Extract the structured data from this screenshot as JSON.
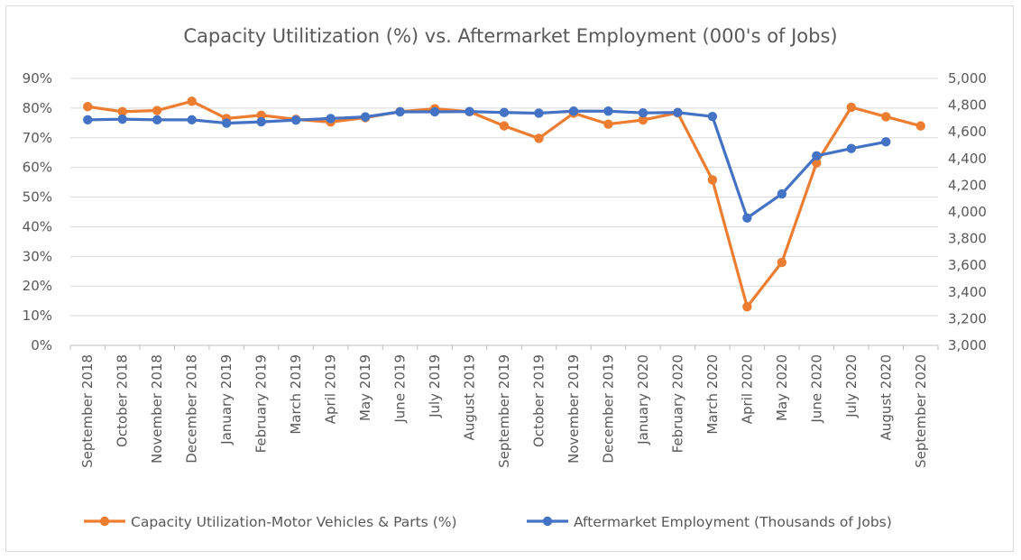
{
  "chart_data": {
    "type": "line",
    "title": "Capacity Utilitization (%) vs. Aftermarket Employment (000's of Jobs)",
    "categories": [
      "September 2018",
      "October 2018",
      "November 2018",
      "December 2018",
      "January 2019",
      "February 2019",
      "March 2019",
      "April 2019",
      "May 2019",
      "June 2019",
      "July 2019",
      "August 2019",
      "September 2019",
      "October 2019",
      "November 2019",
      "December 2019",
      "January 2020",
      "February 2020",
      "March 2020",
      "April 2020",
      "May 2020",
      "June 2020",
      "July 2020",
      "August 2020",
      "September 2020"
    ],
    "y_left": {
      "min": 0,
      "max": 90,
      "step": 10,
      "tick_labels": [
        "0%",
        "10%",
        "20%",
        "30%",
        "40%",
        "50%",
        "60%",
        "70%",
        "80%",
        "90%"
      ]
    },
    "y_right": {
      "min": 3000,
      "max": 5000,
      "step": 200,
      "tick_labels": [
        "3,000",
        "3,200",
        "3,400",
        "3,600",
        "3,800",
        "4,000",
        "4,200",
        "4,400",
        "4,600",
        "4,800",
        "5,000"
      ]
    },
    "grid": true,
    "legend_position": "bottom",
    "series": [
      {
        "name": "Capacity Utilization-Motor Vehicles & Parts (%)",
        "axis": "left",
        "color": "#ED7D31",
        "values": [
          80.5,
          78.8,
          79.2,
          82.3,
          76.5,
          77.6,
          76.2,
          75.3,
          76.8,
          78.8,
          79.8,
          78.8,
          74.0,
          69.8,
          78.3,
          74.6,
          76.0,
          78.4,
          55.8,
          13.0,
          28.0,
          61.5,
          80.3,
          77.1,
          74.0
        ]
      },
      {
        "name": "Aftermarket Employment (Thousands of Jobs)",
        "axis": "right",
        "color": "#4472C4",
        "values": [
          4690,
          4695,
          4690,
          4690,
          4665,
          4675,
          4688,
          4700,
          4712,
          4750,
          4750,
          4752,
          4745,
          4740,
          4755,
          4755,
          4742,
          4745,
          4715,
          3955,
          4135,
          4420,
          4475,
          4525,
          null
        ]
      }
    ]
  }
}
